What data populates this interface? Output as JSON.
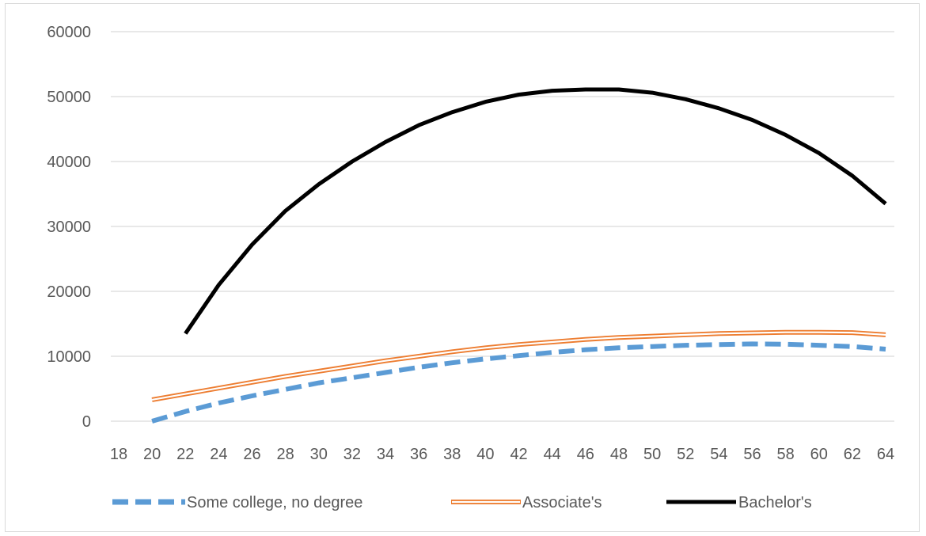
{
  "chart_data": {
    "type": "line",
    "x_ticks": [
      18,
      20,
      22,
      24,
      26,
      28,
      30,
      32,
      34,
      36,
      38,
      40,
      42,
      44,
      46,
      48,
      50,
      52,
      54,
      56,
      58,
      60,
      62,
      64
    ],
    "y_ticks": [
      0,
      10000,
      20000,
      30000,
      40000,
      50000,
      60000
    ],
    "xlim": [
      18,
      64
    ],
    "ylim": [
      0,
      60000
    ],
    "grid": "horizontal",
    "legend_position": "bottom",
    "series": [
      {
        "name": "Some college, no degree",
        "style": "dashed",
        "color": "#5b9bd5",
        "x": [
          20,
          22,
          24,
          26,
          28,
          30,
          32,
          34,
          36,
          38,
          40,
          42,
          44,
          46,
          48,
          50,
          52,
          54,
          56,
          58,
          60,
          62,
          64
        ],
        "values": [
          0,
          1500,
          2800,
          3900,
          4900,
          5900,
          6700,
          7500,
          8300,
          9000,
          9600,
          10100,
          10600,
          11000,
          11300,
          11500,
          11700,
          11800,
          11900,
          11850,
          11700,
          11500,
          11100
        ]
      },
      {
        "name": "Associate's",
        "style": "double",
        "color": "#ed7d31",
        "x": [
          20,
          22,
          24,
          26,
          28,
          30,
          32,
          34,
          36,
          38,
          40,
          42,
          44,
          46,
          48,
          50,
          52,
          54,
          56,
          58,
          60,
          62,
          64
        ],
        "values": [
          3300,
          4200,
          5100,
          6000,
          6900,
          7700,
          8500,
          9300,
          10000,
          10700,
          11300,
          11800,
          12200,
          12600,
          12900,
          13100,
          13300,
          13500,
          13600,
          13700,
          13700,
          13650,
          13300
        ]
      },
      {
        "name": "Bachelor's",
        "style": "solid",
        "color": "#000000",
        "x": [
          22,
          24,
          26,
          28,
          30,
          32,
          34,
          36,
          38,
          40,
          42,
          44,
          46,
          48,
          50,
          52,
          54,
          56,
          58,
          60,
          62,
          64
        ],
        "values": [
          13500,
          21000,
          27200,
          32400,
          36500,
          40000,
          43000,
          45600,
          47600,
          49200,
          50300,
          50900,
          51100,
          51100,
          50600,
          49600,
          48200,
          46400,
          44100,
          41300,
          37800,
          33500
        ]
      }
    ]
  }
}
